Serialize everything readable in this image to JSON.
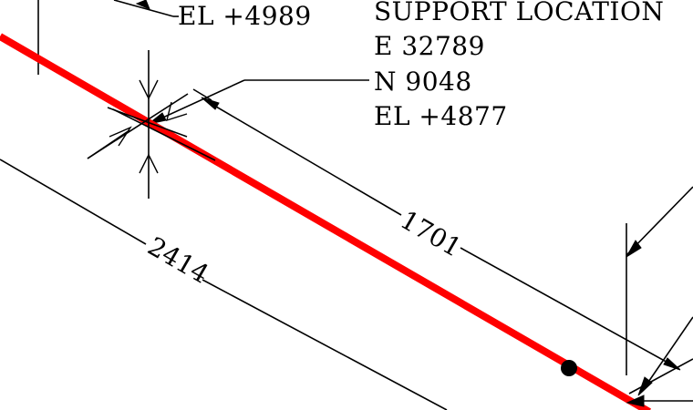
{
  "drawing": {
    "pipe_color": "#ff0000",
    "top_elevation_label": "EL +4989",
    "support_location": {
      "title": "SUPPORT LOCATION",
      "easting": "E 32789",
      "northing": "N 9048",
      "elevation": "EL +4877"
    },
    "dimensions": {
      "dim_1701": "1701",
      "dim_2414": "2414"
    }
  }
}
